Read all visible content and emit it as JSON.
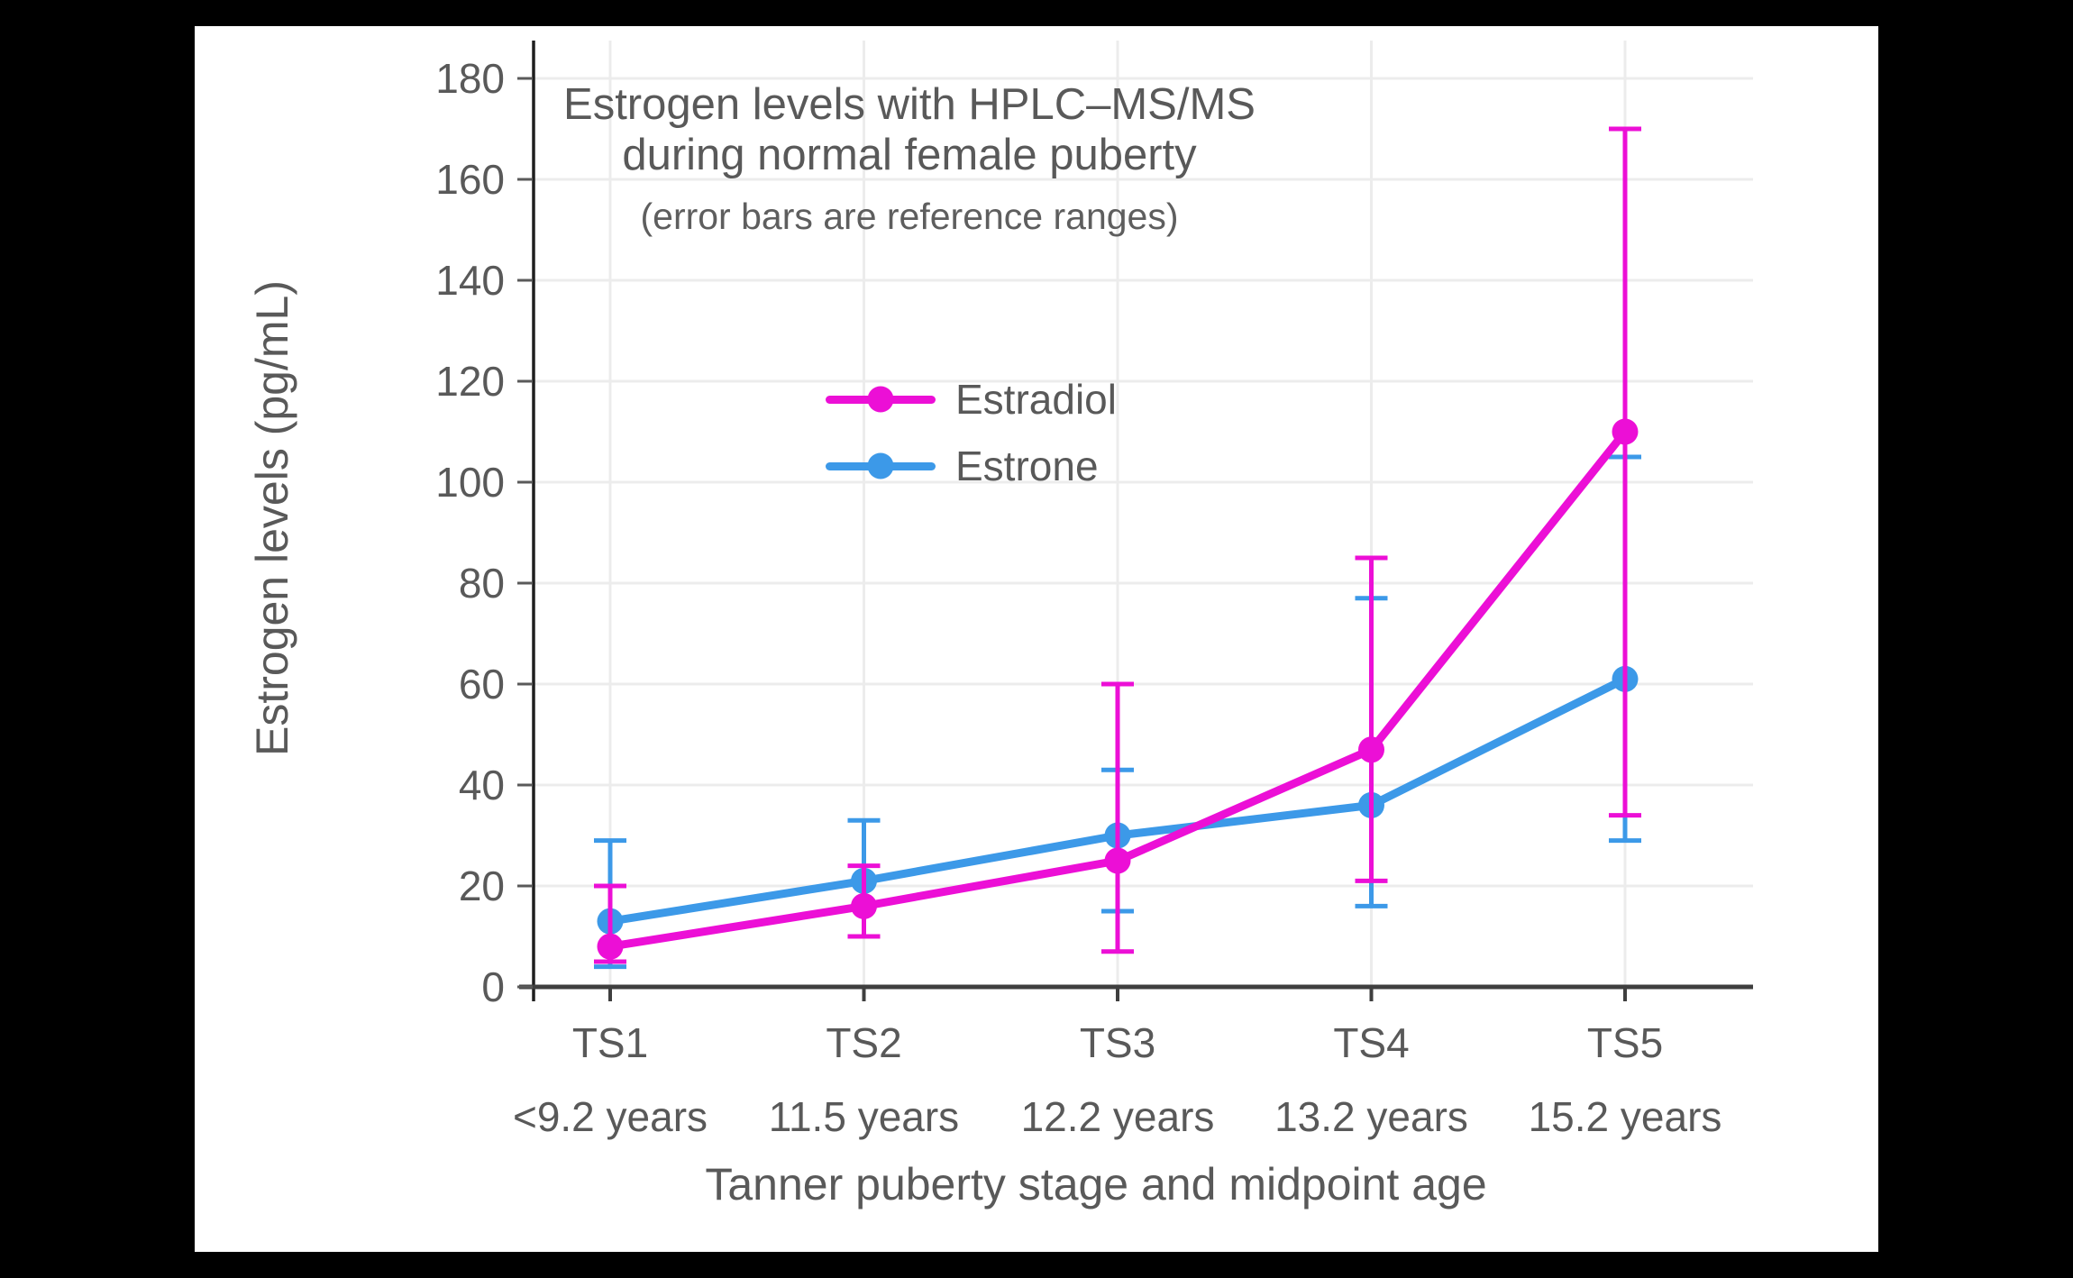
{
  "window": {
    "background": "#000000",
    "panel_background": "#ffffff"
  },
  "header": {
    "title_line1": "Estrogen levels with HPLC–MS/MS",
    "title_line2": "during normal female puberty",
    "subtitle": "(error bars are reference ranges)"
  },
  "legend": {
    "items": [
      {
        "label": "Estradiol",
        "color": "#EC0FD6"
      },
      {
        "label": "Estrone",
        "color": "#3C99E8"
      }
    ]
  },
  "axes": {
    "ylabel": "Estrogen levels (pg/mL)",
    "xlabel": "Tanner puberty stage and midpoint age"
  },
  "chart_data": {
    "type": "line",
    "title": "Estrogen levels with HPLC–MS/MS during normal female puberty",
    "subtitle": "(error bars are reference ranges)",
    "xlabel": "Tanner puberty stage and midpoint age",
    "ylabel": "Estrogen levels (pg/mL)",
    "error_bars": "reference ranges",
    "grid": true,
    "legend_position": "upper center inside plot",
    "ylim": [
      0,
      187.5
    ],
    "yticks": [
      0,
      20,
      40,
      60,
      80,
      100,
      120,
      140,
      160,
      180
    ],
    "categories": [
      {
        "stage": "TS1",
        "age": "<9.2 years"
      },
      {
        "stage": "TS2",
        "age": "11.5 years"
      },
      {
        "stage": "TS3",
        "age": "12.2 years"
      },
      {
        "stage": "TS4",
        "age": "13.2 years"
      },
      {
        "stage": "TS5",
        "age": "15.2 years"
      }
    ],
    "series": [
      {
        "name": "Estrone",
        "color": "#3C99E8",
        "values": [
          13,
          21,
          30,
          36,
          61
        ],
        "range_low": [
          4,
          10,
          15,
          16,
          29
        ],
        "range_high": [
          29,
          33,
          43,
          77,
          105
        ]
      },
      {
        "name": "Estradiol",
        "color": "#EC0FD6",
        "values": [
          8,
          16,
          25,
          47,
          110
        ],
        "range_low": [
          5,
          10,
          7,
          21,
          34
        ],
        "range_high": [
          20,
          24,
          60,
          85,
          170
        ]
      }
    ],
    "style": {
      "text_color": "#595959",
      "grid_color": "#ECECEC",
      "y_axis_color": "#1F1F1F",
      "x_axis_color": "#3F3F3F"
    }
  }
}
